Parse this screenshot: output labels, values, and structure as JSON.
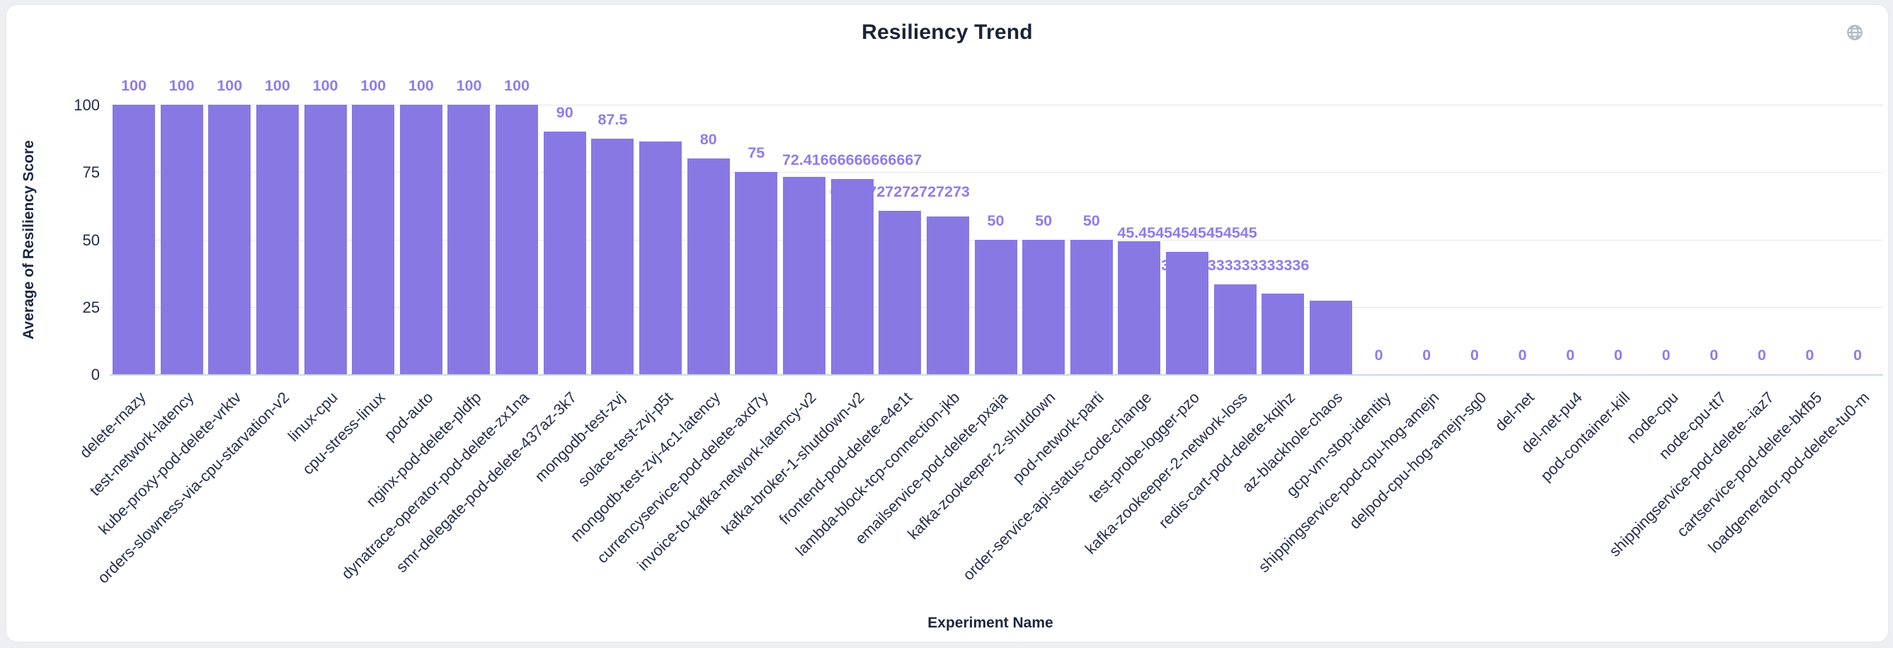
{
  "header": {
    "title": "Resiliency Trend"
  },
  "icons": {
    "top_right": "globe-icon",
    "color": "#b0b9c7"
  },
  "colors": {
    "page_background": "#edeff3",
    "card_background": "#ffffff",
    "card_border": "#e4e7ed",
    "bar": "#8878e4",
    "value_label": "#8e7ceb",
    "gridline": "#e7e7e7",
    "axis_line": "#cdd6ea",
    "tick_text": "#1f2a44",
    "category_text": "#27304e",
    "title_text": "#1a2437"
  },
  "chart_data": {
    "type": "bar",
    "title": "Resiliency Trend",
    "xlabel": "Experiment Name",
    "ylabel": "Average of Resiliency Score",
    "ylim": [
      0,
      100
    ],
    "yticks": [
      0,
      25,
      50,
      75,
      100
    ],
    "grid": "horizontal",
    "legend": "none",
    "categories": [
      "delete-rnazy",
      "test-network-latency",
      "kube-proxy-pod-delete-vrktv",
      "orders-slowness-via-cpu-starvation-v2",
      "linux-cpu",
      "cpu-stress-linux",
      "pod-auto",
      "nginx-pod-delete-pldfp",
      "dynatrace-operator-pod-delete-zx1na",
      "smr-delegate-pod-delete-437az-3k7",
      "mongodb-test-zvj",
      "solace-test-zvj-p5t",
      "mongodb-test-zvj-4c1-latency",
      "currencyservice-pod-delete-axd7y",
      "invoice-to-kafka-network-latency-v2",
      "kafka-broker-1-shutdown-v2",
      "frontend-pod-delete-e4e1t",
      "lambda-block-tcp-connection-jkb",
      "emailservice-pod-delete-pxaja",
      "kafka-zookeeper-2-shutdown",
      "pod-network-parti",
      "order-service-api-status-code-change",
      "test-probe-logger-pzo",
      "kafka-zookeeper-2-network-loss",
      "redis-cart-pod-delete-kqihz",
      "az-blackhole-chaos",
      "gcp-vm-stop-identity",
      "shippingservice-pod-cpu-hog-amejn",
      "delpod-cpu-hog-amejn-sg0",
      "del-net",
      "del-net-pu4",
      "pod-container-kill",
      "node-cpu",
      "node-cpu-tt7",
      "shippingservice-pod-delete--iaz7",
      "cartservice-pod-delete-bkfb5",
      "loadgenerator-pod-delete-tu0-m"
    ],
    "values": [
      100,
      100,
      100,
      100,
      100,
      100,
      100,
      100,
      100,
      90,
      87.5,
      86.4,
      80,
      75,
      73.3,
      72.41666666666667,
      60.72727272727273,
      58.6,
      50,
      50,
      50,
      49.3,
      45.45454545454545,
      33.333333333333336,
      29.8,
      27.2,
      0,
      0,
      0,
      0,
      0,
      0,
      0,
      0,
      0,
      0,
      0
    ],
    "value_labels": [
      "100",
      "100",
      "100",
      "100",
      "100",
      "100",
      "100",
      "100",
      "100",
      "90",
      "87.5",
      null,
      "80",
      "75",
      null,
      "72.41666666666667",
      "60.72727272727273",
      null,
      "50",
      "50",
      "50",
      null,
      "45.45454545454545",
      "33.333333333333336",
      null,
      null,
      "0",
      "0",
      "0",
      "0",
      "0",
      "0",
      "0",
      "0",
      "0",
      "0",
      "0"
    ]
  }
}
